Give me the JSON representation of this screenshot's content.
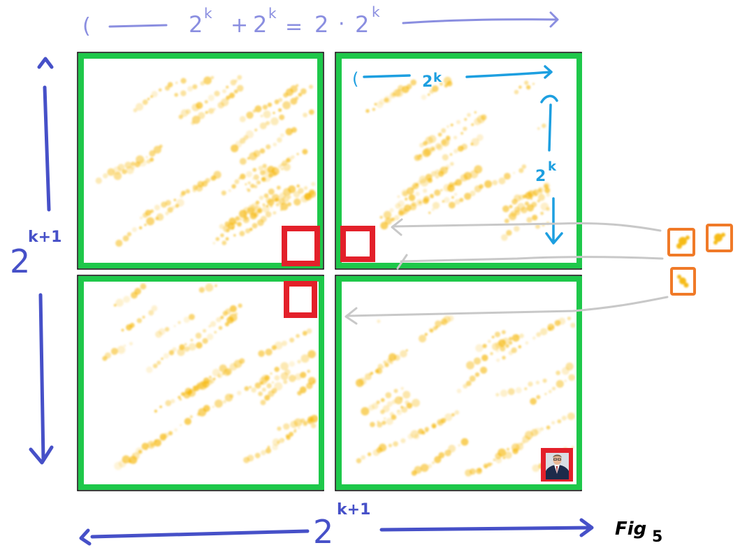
{
  "title": {
    "left_paren": "(",
    "base1": "2",
    "exp1": "k",
    "plus": "+",
    "base2": "2",
    "exp2": "k",
    "equals": "=",
    "two": "2",
    "dot": "·",
    "base3": "2",
    "exp3": "k"
  },
  "left_dimension": {
    "base": "2",
    "exponent": "k+1"
  },
  "bottom_dimension": {
    "base": "2",
    "exponent": "k+1"
  },
  "quadrant_top": {
    "label": "2",
    "exp": "k"
  },
  "quadrant_right": {
    "label": "2",
    "exp": "k"
  },
  "figure_label": {
    "text": "Fig",
    "number": "5"
  },
  "colors": {
    "title": "#8a8ee0",
    "dimension": "#4650c8",
    "quadrant_border": "#1ec84a",
    "tromino": "#e3202a",
    "quad_annotation": "#1d9fe0",
    "orange": "#f07a28",
    "speckle": "#f5b400",
    "guide": "#c8c8c8"
  },
  "icons": {
    "photo": "person-photo-icon",
    "tromino_key": "l-tromino-icon"
  }
}
